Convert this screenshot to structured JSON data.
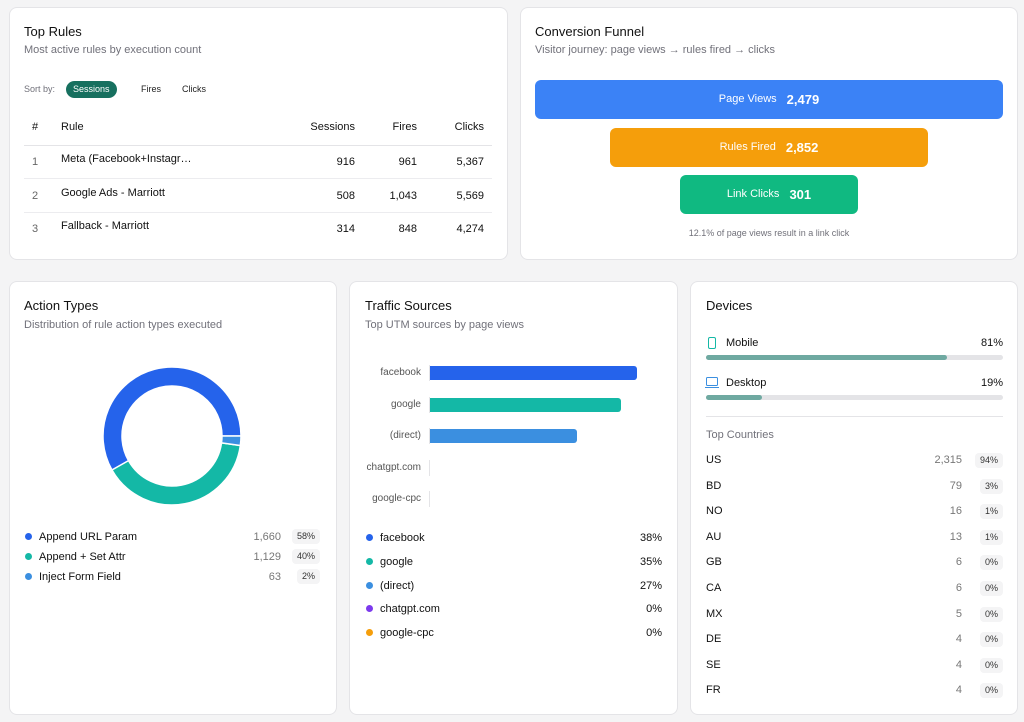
{
  "top_rules": {
    "title": "Top Rules",
    "subtitle": "Most active rules by execution count",
    "sort_label": "Sort by:",
    "sort_options": [
      "Sessions",
      "Fires",
      "Clicks"
    ],
    "selected_sort": 0,
    "columns": [
      "#",
      "Rule",
      "Sessions",
      "Fires",
      "Clicks"
    ],
    "rows": [
      [
        "1",
        "Meta (Facebook+Instagr…",
        "916",
        "961",
        "5,367"
      ],
      [
        "2",
        "Google Ads - Marriott",
        "508",
        "1,043",
        "5,569"
      ],
      [
        "3",
        "Fallback - Marriott",
        "314",
        "848",
        "4,274"
      ]
    ]
  },
  "conversion_funnel": {
    "title": "Conversion Funnel",
    "subtitle": "Visitor journey: page views → rules fired → clicks",
    "steps": [
      {
        "label": "Page Views",
        "value": "2,479",
        "color": "#3b82f6"
      },
      {
        "label": "Rules Fired",
        "value": "2,852",
        "color": "#f59e0b"
      },
      {
        "label": "Link Clicks",
        "value": "301",
        "color": "#10b981"
      }
    ],
    "note": "12.1% of page views result in a link click"
  },
  "action_types": {
    "title": "Action Types",
    "subtitle": "Distribution of rule action types executed",
    "items": [
      {
        "name": "Append URL Param",
        "color": "#2563eb",
        "value": 1660,
        "value_label": "1,660",
        "share": "58%"
      },
      {
        "name": "Append + Set Attr",
        "color": "#14b8a6",
        "value": 1129,
        "value_label": "1,129",
        "share": "40%"
      },
      {
        "name": "Inject Form Field",
        "color": "#3b8fe0",
        "value": 63,
        "value_label": "63",
        "share": "2%"
      }
    ]
  },
  "traffic_sources": {
    "title": "Traffic Sources",
    "subtitle": "Top UTM sources by page views",
    "items": [
      {
        "name": "facebook",
        "color": "#2563eb",
        "share": 38,
        "share_label": "38%"
      },
      {
        "name": "google",
        "color": "#14b8a6",
        "share": 35,
        "share_label": "35%"
      },
      {
        "name": "(direct)",
        "color": "#3b8fe0",
        "share": 27,
        "share_label": "27%"
      },
      {
        "name": "chatgpt.com",
        "color": "#7c3aed",
        "share": 0,
        "share_label": "0%"
      },
      {
        "name": "google-cpc",
        "color": "#f59e0b",
        "share": 0,
        "share_label": "0%"
      }
    ]
  },
  "devices": {
    "title": "Devices",
    "bar_color": "#6fa9a1",
    "items": [
      {
        "name": "Mobile",
        "share": 81,
        "share_label": "81%"
      },
      {
        "name": "Desktop",
        "share": 19,
        "share_label": "19%"
      }
    ],
    "countries_title": "Top Countries",
    "countries": [
      {
        "code": "US",
        "count": "2,315",
        "share": "94%"
      },
      {
        "code": "BD",
        "count": "79",
        "share": "3%"
      },
      {
        "code": "NO",
        "count": "16",
        "share": "1%"
      },
      {
        "code": "AU",
        "count": "13",
        "share": "1%"
      },
      {
        "code": "GB",
        "count": "6",
        "share": "0%"
      },
      {
        "code": "CA",
        "count": "6",
        "share": "0%"
      },
      {
        "code": "MX",
        "count": "5",
        "share": "0%"
      },
      {
        "code": "DE",
        "count": "4",
        "share": "0%"
      },
      {
        "code": "SE",
        "count": "4",
        "share": "0%"
      },
      {
        "code": "FR",
        "count": "4",
        "share": "0%"
      }
    ]
  }
}
